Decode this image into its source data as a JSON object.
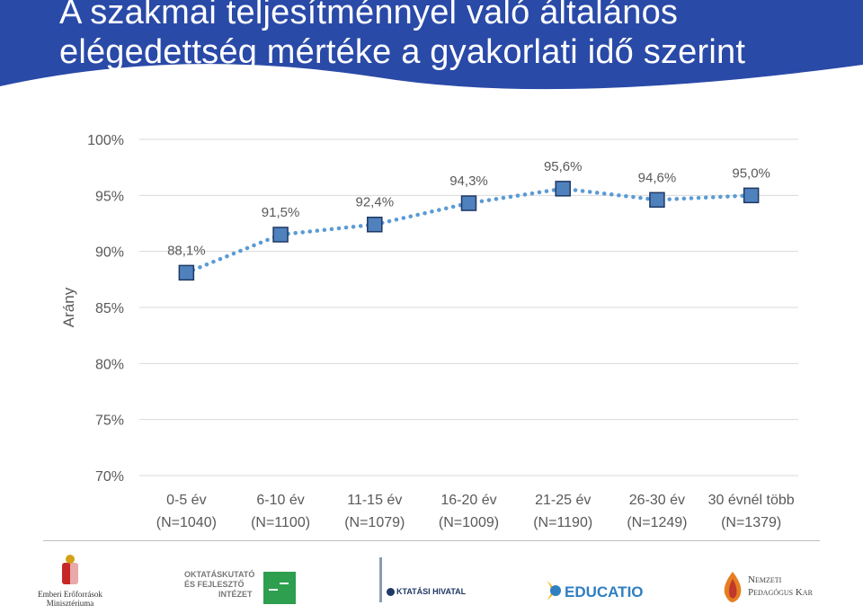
{
  "slide": {
    "title_line1": "A szakmai teljesítménnyel való általános",
    "title_line2": "elégedettség mértéke a gyakorlati idő szerint",
    "header_color": "#2a4aa8"
  },
  "chart_data": {
    "type": "line",
    "ylabel": "Arány",
    "ylim": [
      70,
      100
    ],
    "y_ticks": [
      "100%",
      "95%",
      "90%",
      "85%",
      "80%",
      "75%",
      "70%"
    ],
    "y_tick_values": [
      100,
      95,
      90,
      85,
      80,
      75,
      70
    ],
    "categories": [
      {
        "line1": "0-5 év",
        "line2": "(N=1040)"
      },
      {
        "line1": "6-10 év",
        "line2": "(N=1100)"
      },
      {
        "line1": "11-15 év",
        "line2": "(N=1079)"
      },
      {
        "line1": "16-20 év",
        "line2": "(N=1009)"
      },
      {
        "line1": "21-25 év",
        "line2": "(N=1190)"
      },
      {
        "line1": "26-30 év",
        "line2": "(N=1249)"
      },
      {
        "line1": "30 évnél több",
        "line2": "(N=1379)"
      }
    ],
    "values": [
      88.1,
      91.5,
      92.4,
      94.3,
      95.6,
      94.6,
      95.0
    ],
    "data_labels": [
      "88,1%",
      "91,5%",
      "92,4%",
      "94,3%",
      "95,6%",
      "94,6%",
      "95,0%"
    ],
    "grid": true,
    "line_style": "dotted",
    "marker": "square",
    "line_color": "#5b9bd5",
    "marker_fill": "#4f81bd",
    "marker_stroke": "#1f3864"
  },
  "footer": {
    "logos": [
      {
        "name": "emmi",
        "line1": "Emberi Erőforrások",
        "line2": "Minisztériuma"
      },
      {
        "name": "ofi",
        "line1": "OKTATÁSKUTATÓ",
        "line2": "ÉS FEJLESZTŐ",
        "line3": "INTÉZET"
      },
      {
        "name": "oh",
        "text": "KTATÁSI HIVATAL"
      },
      {
        "name": "educatio",
        "text": "EDUCATIO"
      },
      {
        "name": "npk",
        "line1": "Nemzeti",
        "line2": "Pedagógus Kar"
      }
    ]
  }
}
